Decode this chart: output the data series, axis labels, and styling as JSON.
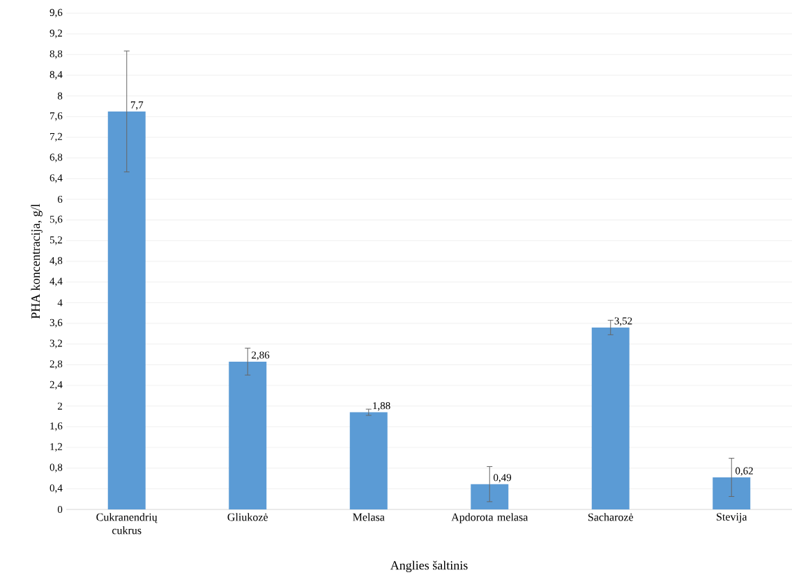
{
  "chart_data": {
    "type": "bar",
    "xlabel": "Anglies šaltinis",
    "ylabel": "PHA koncentracija, g/l",
    "categories": [
      "Cukranendrių cukrus",
      "Gliukozė",
      "Melasa",
      "Apdorota melasa",
      "Sacharozė",
      "Stevija"
    ],
    "values": [
      7.7,
      2.86,
      1.88,
      0.49,
      3.52,
      0.62
    ],
    "value_labels": [
      "7,7",
      "2,86",
      "1,88",
      "0,49",
      "3,52",
      "0,62"
    ],
    "errors": [
      1.17,
      0.26,
      0.06,
      0.34,
      0.14,
      0.37
    ],
    "color": "#5b9bd5",
    "ylim": [
      0,
      9.6
    ],
    "yticks": [
      {
        "value": 0,
        "label": "0"
      },
      {
        "value": 0.4,
        "label": "0,4"
      },
      {
        "value": 0.8,
        "label": "0,8"
      },
      {
        "value": 1.2,
        "label": "1,2"
      },
      {
        "value": 1.6,
        "label": "1,6"
      },
      {
        "value": 2,
        "label": "2"
      },
      {
        "value": 2.4,
        "label": "2,4"
      },
      {
        "value": 2.8,
        "label": "2,8"
      },
      {
        "value": 3.2,
        "label": "3,2"
      },
      {
        "value": 3.6,
        "label": "3,6"
      },
      {
        "value": 4,
        "label": "4"
      },
      {
        "value": 4.4,
        "label": "4,4"
      },
      {
        "value": 4.8,
        "label": "4,8"
      },
      {
        "value": 5.2,
        "label": "5,2"
      },
      {
        "value": 5.6,
        "label": "5,6"
      },
      {
        "value": 6,
        "label": "6"
      },
      {
        "value": 6.4,
        "label": "6,4"
      },
      {
        "value": 6.8,
        "label": "6,8"
      },
      {
        "value": 7.2,
        "label": "7,2"
      },
      {
        "value": 7.6,
        "label": "7,6"
      },
      {
        "value": 8,
        "label": "8"
      },
      {
        "value": 8.4,
        "label": "8,4"
      },
      {
        "value": 8.8,
        "label": "8,8"
      },
      {
        "value": 9.2,
        "label": "9,2"
      },
      {
        "value": 9.6,
        "label": "9,6"
      }
    ],
    "grid": "y"
  }
}
